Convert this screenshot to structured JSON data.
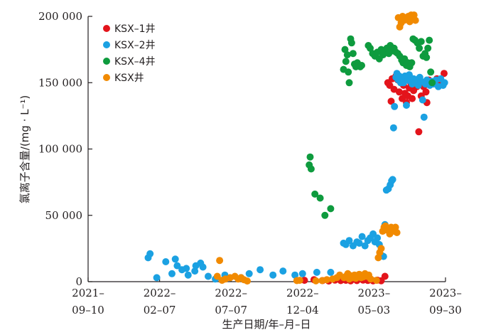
{
  "chart_data": {
    "type": "scatter",
    "xlabel": "生产日期/年–月–日",
    "ylabel": "氯离子含量/(mg · L⁻¹)",
    "x_ticks": [
      {
        "date": "2021-09-10",
        "line1": "2021–",
        "line2": "09–10"
      },
      {
        "date": "2022-02-07",
        "line1": "2022–",
        "line2": "02–07"
      },
      {
        "date": "2022-07-07",
        "line1": "2022–",
        "line2": "07–07"
      },
      {
        "date": "2022-12-04",
        "line1": "2022–",
        "line2": "12–04"
      },
      {
        "date": "2023-05-03",
        "line1": "2023–",
        "line2": "05–03"
      },
      {
        "date": "2023-09-30",
        "line1": "2023–",
        "line2": "09–30"
      }
    ],
    "y_ticks": [
      {
        "value": 0,
        "label": "0"
      },
      {
        "value": 50000,
        "label": "50 000"
      },
      {
        "value": 100000,
        "label": "100 000"
      },
      {
        "value": 150000,
        "label": "150 000"
      },
      {
        "value": 200000,
        "label": "200 000"
      }
    ],
    "xlim": [
      "2021-09-10",
      "2023-09-30"
    ],
    "ylim": [
      0,
      200000
    ],
    "grid": false,
    "legend_position": "top-left",
    "series": [
      {
        "name": "KSX–1井",
        "color": "#e3141b",
        "points": [
          [
            "2022-12-08",
            1000
          ],
          [
            "2022-12-28",
            1500
          ],
          [
            "2023-01-15",
            800
          ],
          [
            "2023-01-28",
            500
          ],
          [
            "2023-02-10",
            1200
          ],
          [
            "2023-02-22",
            800
          ],
          [
            "2023-03-05",
            1000
          ],
          [
            "2023-03-15",
            600
          ],
          [
            "2023-03-28",
            800
          ],
          [
            "2023-04-10",
            1200
          ],
          [
            "2023-04-20",
            900
          ],
          [
            "2023-05-01",
            600
          ],
          [
            "2023-05-10",
            1100
          ],
          [
            "2023-05-18",
            700
          ],
          [
            "2023-05-26",
            4000
          ],
          [
            "2023-06-01",
            150000
          ],
          [
            "2023-06-05",
            148000
          ],
          [
            "2023-06-08",
            136000
          ],
          [
            "2023-06-10",
            153000
          ],
          [
            "2023-06-14",
            145000
          ],
          [
            "2023-06-18",
            155000
          ],
          [
            "2023-06-22",
            152000
          ],
          [
            "2023-06-25",
            143000
          ],
          [
            "2023-06-28",
            150000
          ],
          [
            "2023-07-01",
            138000
          ],
          [
            "2023-07-04",
            148000
          ],
          [
            "2023-07-07",
            142000
          ],
          [
            "2023-07-10",
            135000
          ],
          [
            "2023-07-13",
            140000
          ],
          [
            "2023-07-16",
            146000
          ],
          [
            "2023-07-19",
            150000
          ],
          [
            "2023-07-22",
            138000
          ],
          [
            "2023-07-25",
            144000
          ],
          [
            "2023-07-28",
            150000
          ],
          [
            "2023-08-01",
            147000
          ],
          [
            "2023-08-05",
            113000
          ],
          [
            "2023-08-10",
            140000
          ],
          [
            "2023-08-15",
            147000
          ],
          [
            "2023-08-20",
            143000
          ],
          [
            "2023-08-22",
            135000
          ],
          [
            "2023-08-26",
            152000
          ],
          [
            "2023-09-05",
            150000
          ],
          [
            "2023-09-12",
            153000
          ],
          [
            "2023-09-20",
            150000
          ],
          [
            "2023-09-27",
            157000
          ]
        ]
      },
      {
        "name": "KSX–2井",
        "color": "#1ba1e2",
        "points": [
          [
            "2022-01-14",
            18000
          ],
          [
            "2022-01-18",
            21000
          ],
          [
            "2022-02-01",
            3000
          ],
          [
            "2022-02-20",
            15000
          ],
          [
            "2022-03-05",
            6000
          ],
          [
            "2022-03-12",
            17000
          ],
          [
            "2022-03-16",
            12000
          ],
          [
            "2022-03-26",
            9000
          ],
          [
            "2022-04-04",
            10000
          ],
          [
            "2022-04-08",
            5000
          ],
          [
            "2022-04-22",
            8000
          ],
          [
            "2022-04-24",
            12000
          ],
          [
            "2022-05-04",
            14000
          ],
          [
            "2022-05-09",
            11000
          ],
          [
            "2022-05-20",
            4000
          ],
          [
            "2022-06-04",
            2000
          ],
          [
            "2022-06-24",
            5000
          ],
          [
            "2022-07-28",
            3000
          ],
          [
            "2022-08-14",
            6000
          ],
          [
            "2022-09-06",
            9000
          ],
          [
            "2022-10-03",
            5000
          ],
          [
            "2022-10-24",
            8000
          ],
          [
            "2022-11-18",
            5000
          ],
          [
            "2022-12-04",
            6000
          ],
          [
            "2023-01-03",
            7000
          ],
          [
            "2023-02-01",
            7000
          ],
          [
            "2023-02-28",
            29000
          ],
          [
            "2023-03-05",
            28000
          ],
          [
            "2023-03-12",
            31000
          ],
          [
            "2023-03-20",
            27000
          ],
          [
            "2023-03-28",
            30000
          ],
          [
            "2023-04-02",
            29000
          ],
          [
            "2023-04-08",
            34000
          ],
          [
            "2023-04-14",
            27000
          ],
          [
            "2023-04-20",
            31000
          ],
          [
            "2023-04-25",
            33000
          ],
          [
            "2023-05-01",
            36000
          ],
          [
            "2023-05-05",
            30000
          ],
          [
            "2023-05-10",
            33000
          ],
          [
            "2023-05-14",
            28000
          ],
          [
            "2023-05-20",
            19500
          ],
          [
            "2023-05-23",
            19000
          ],
          [
            "2023-05-26",
            43000
          ],
          [
            "2023-05-29",
            69000
          ],
          [
            "2023-06-02",
            70000
          ],
          [
            "2023-06-06",
            73000
          ],
          [
            "2023-06-09",
            76000
          ],
          [
            "2023-06-11",
            77000
          ],
          [
            "2023-06-13",
            116000
          ],
          [
            "2023-06-15",
            132000
          ],
          [
            "2023-06-18",
            154000
          ],
          [
            "2023-06-20",
            157000
          ],
          [
            "2023-06-23",
            152000
          ],
          [
            "2023-06-25",
            155000
          ],
          [
            "2023-06-28",
            150000
          ],
          [
            "2023-07-01",
            153000
          ],
          [
            "2023-07-04",
            150000
          ],
          [
            "2023-07-07",
            155000
          ],
          [
            "2023-07-10",
            133000
          ],
          [
            "2023-07-13",
            152000
          ],
          [
            "2023-07-16",
            156000
          ],
          [
            "2023-07-19",
            151000
          ],
          [
            "2023-07-22",
            149000
          ],
          [
            "2023-07-25",
            153000
          ],
          [
            "2023-07-28",
            150000
          ],
          [
            "2023-08-01",
            152000
          ],
          [
            "2023-08-04",
            148000
          ],
          [
            "2023-08-07",
            154000
          ],
          [
            "2023-08-10",
            151000
          ],
          [
            "2023-08-13",
            137000
          ],
          [
            "2023-08-16",
            124000
          ],
          [
            "2023-08-19",
            149000
          ],
          [
            "2023-08-22",
            152000
          ],
          [
            "2023-08-25",
            150000
          ],
          [
            "2023-08-28",
            148000
          ],
          [
            "2023-09-01",
            151000
          ],
          [
            "2023-09-05",
            149000
          ],
          [
            "2023-09-10",
            152000
          ],
          [
            "2023-09-15",
            147000
          ],
          [
            "2023-09-20",
            153000
          ],
          [
            "2023-09-25",
            148000
          ],
          [
            "2023-09-28",
            150000
          ]
        ]
      },
      {
        "name": "KSX–4井",
        "color": "#0e9b3e",
        "points": [
          [
            "2022-12-18",
            88000
          ],
          [
            "2022-12-20",
            94000
          ],
          [
            "2022-12-22",
            85000
          ],
          [
            "2022-12-30",
            66000
          ],
          [
            "2023-01-10",
            63000
          ],
          [
            "2023-01-20",
            50000
          ],
          [
            "2023-02-01",
            55000
          ],
          [
            "2023-02-28",
            160000
          ],
          [
            "2023-03-03",
            175000
          ],
          [
            "2023-03-05",
            166000
          ],
          [
            "2023-03-08",
            171000
          ],
          [
            "2023-03-10",
            158000
          ],
          [
            "2023-03-12",
            150000
          ],
          [
            "2023-03-15",
            183000
          ],
          [
            "2023-03-17",
            180000
          ],
          [
            "2023-03-20",
            172000
          ],
          [
            "2023-03-23",
            164000
          ],
          [
            "2023-03-26",
            162000
          ],
          [
            "2023-03-29",
            165000
          ],
          [
            "2023-04-01",
            163000
          ],
          [
            "2023-04-04",
            162000
          ],
          [
            "2023-04-07",
            163000
          ],
          [
            "2023-04-21",
            178000
          ],
          [
            "2023-04-25",
            176000
          ],
          [
            "2023-04-30",
            172000
          ],
          [
            "2023-05-05",
            170000
          ],
          [
            "2023-05-10",
            173000
          ],
          [
            "2023-05-14",
            168000
          ],
          [
            "2023-05-18",
            175000
          ],
          [
            "2023-05-22",
            171000
          ],
          [
            "2023-05-26",
            174000
          ],
          [
            "2023-05-30",
            176000
          ],
          [
            "2023-06-03",
            172000
          ],
          [
            "2023-06-06",
            178000
          ],
          [
            "2023-06-10",
            174000
          ],
          [
            "2023-06-14",
            176000
          ],
          [
            "2023-06-18",
            173000
          ],
          [
            "2023-06-22",
            172000
          ],
          [
            "2023-06-26",
            170000
          ],
          [
            "2023-06-30",
            167000
          ],
          [
            "2023-07-03",
            165000
          ],
          [
            "2023-07-06",
            168000
          ],
          [
            "2023-07-10",
            163000
          ],
          [
            "2023-07-13",
            165000
          ],
          [
            "2023-07-17",
            162000
          ],
          [
            "2023-07-21",
            165000
          ],
          [
            "2023-07-24",
            183000
          ],
          [
            "2023-07-28",
            182000
          ],
          [
            "2023-08-02",
            180000
          ],
          [
            "2023-08-06",
            176000
          ],
          [
            "2023-08-10",
            181000
          ],
          [
            "2023-08-14",
            170000
          ],
          [
            "2023-08-18",
            172000
          ],
          [
            "2023-08-21",
            169000
          ],
          [
            "2023-08-24",
            176000
          ],
          [
            "2023-08-27",
            182000
          ],
          [
            "2023-08-30",
            158000
          ],
          [
            "2023-09-02",
            150000
          ]
        ]
      },
      {
        "name": "KSX井",
        "color": "#f18a00",
        "points": [
          [
            "2022-06-08",
            4000
          ],
          [
            "2022-06-13",
            16000
          ],
          [
            "2022-06-18",
            1000
          ],
          [
            "2022-06-25",
            2000
          ],
          [
            "2022-07-05",
            3000
          ],
          [
            "2022-07-15",
            4000
          ],
          [
            "2022-07-22",
            2000
          ],
          [
            "2022-07-28",
            3000
          ],
          [
            "2022-08-03",
            1500
          ],
          [
            "2022-08-10",
            500
          ],
          [
            "2022-11-22",
            800
          ],
          [
            "2022-11-28",
            1000
          ],
          [
            "2023-01-01",
            600
          ],
          [
            "2023-01-14",
            800
          ],
          [
            "2023-01-24",
            1500
          ],
          [
            "2023-02-05",
            2000
          ],
          [
            "2023-02-14",
            3000
          ],
          [
            "2023-02-20",
            5000
          ],
          [
            "2023-03-01",
            3000
          ],
          [
            "2023-03-05",
            4000
          ],
          [
            "2023-03-09",
            6000
          ],
          [
            "2023-03-12",
            2000
          ],
          [
            "2023-03-15",
            4500
          ],
          [
            "2023-03-19",
            3000
          ],
          [
            "2023-03-23",
            5000
          ],
          [
            "2023-03-26",
            2500
          ],
          [
            "2023-03-30",
            4000
          ],
          [
            "2023-04-02",
            5500
          ],
          [
            "2023-04-06",
            3000
          ],
          [
            "2023-04-10",
            3500
          ],
          [
            "2023-04-14",
            6000
          ],
          [
            "2023-04-18",
            4000
          ],
          [
            "2023-04-22",
            5000
          ],
          [
            "2023-04-26",
            2000
          ],
          [
            "2023-05-08",
            1000
          ],
          [
            "2023-05-12",
            18000
          ],
          [
            "2023-05-15",
            22000
          ],
          [
            "2023-05-18",
            25000
          ],
          [
            "2023-05-21",
            38000
          ],
          [
            "2023-05-24",
            41000
          ],
          [
            "2023-05-27",
            42000
          ],
          [
            "2023-05-30",
            39000
          ],
          [
            "2023-06-02",
            40000
          ],
          [
            "2023-06-05",
            36000
          ],
          [
            "2023-06-08",
            41000
          ],
          [
            "2023-06-11",
            39000
          ],
          [
            "2023-06-14",
            38000
          ],
          [
            "2023-06-17",
            41000
          ],
          [
            "2023-06-20",
            37000
          ],
          [
            "2023-06-23",
            199000
          ],
          [
            "2023-06-26",
            192000
          ],
          [
            "2023-06-29",
            195000
          ],
          [
            "2023-07-02",
            200000
          ],
          [
            "2023-07-05",
            197000
          ],
          [
            "2023-07-08",
            199000
          ],
          [
            "2023-07-11",
            198000
          ],
          [
            "2023-07-14",
            200000
          ],
          [
            "2023-07-17",
            196000
          ],
          [
            "2023-07-20",
            201000
          ],
          [
            "2023-07-23",
            198000
          ],
          [
            "2023-07-26",
            201000
          ],
          [
            "2023-07-29",
            197000
          ]
        ]
      }
    ]
  }
}
